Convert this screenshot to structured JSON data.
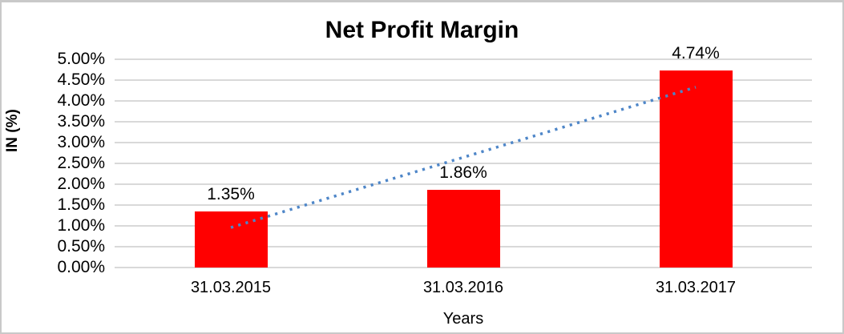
{
  "window": {
    "background": "#FFFFFF",
    "border_color": "#C9C9C9"
  },
  "chart_data": {
    "type": "bar",
    "title": "Net Profit Margin",
    "xlabel": "Years",
    "ylabel": "IN (%)",
    "categories": [
      "31.03.2015",
      "31.03.2016",
      "31.03.2017"
    ],
    "values": [
      1.35,
      1.86,
      4.74
    ],
    "data_labels": [
      "1.35%",
      "1.86%",
      "4.74%"
    ],
    "bar_color": "#FF0000",
    "ylim": [
      0,
      5
    ],
    "ytick_step": 0.5,
    "yticks": [
      "0.00%",
      "0.50%",
      "1.00%",
      "1.50%",
      "2.00%",
      "2.50%",
      "3.00%",
      "3.50%",
      "4.00%",
      "4.50%",
      "5.00%"
    ],
    "grid": "horizontal",
    "gridline_color": "#D9D9D9",
    "legend": "none",
    "trendline": {
      "type": "linear",
      "style": "dotted",
      "color": "#4E86C8",
      "start_value": 0.96,
      "end_value": 4.33
    }
  }
}
